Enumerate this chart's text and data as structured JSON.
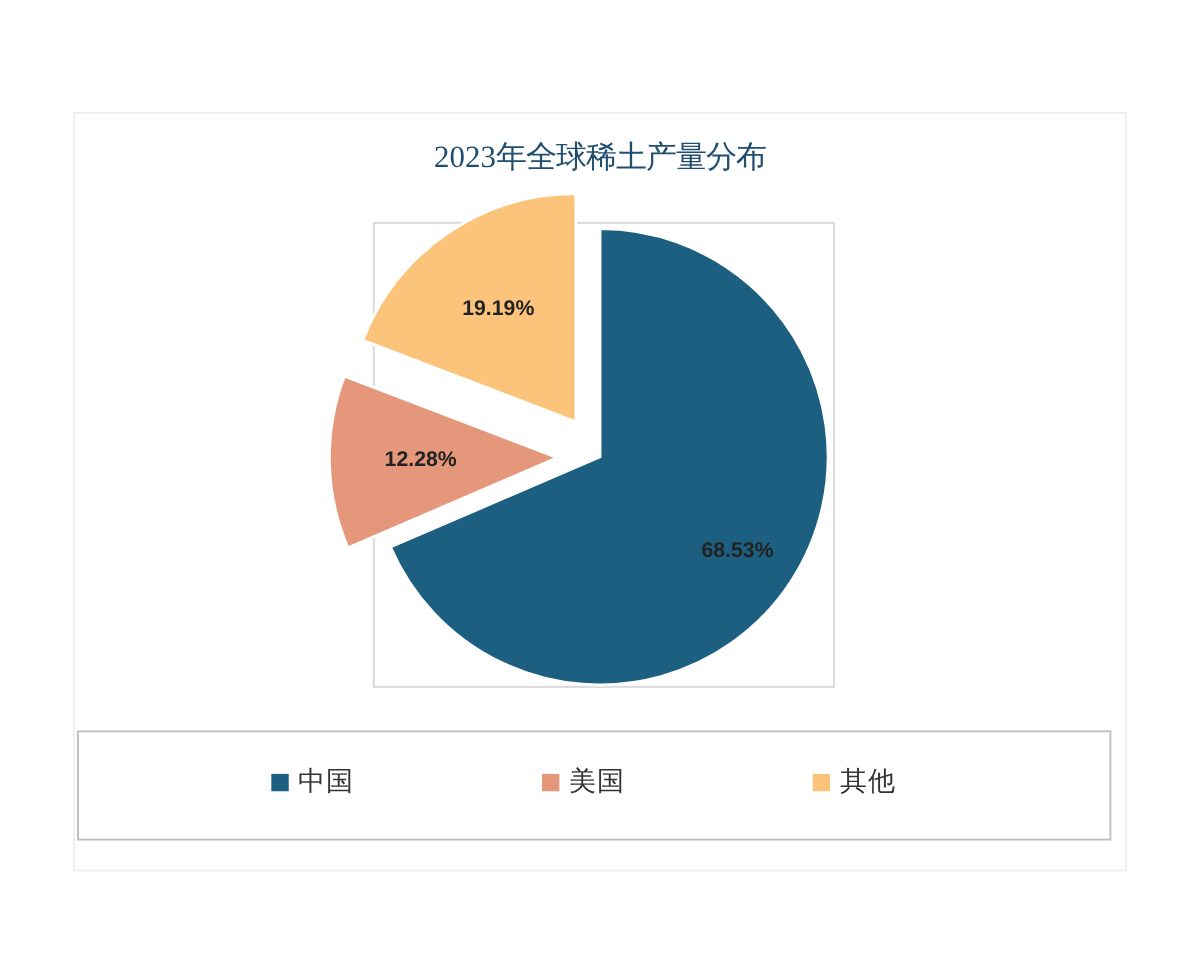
{
  "chart_data": {
    "type": "pie",
    "title": "2023年全球稀土产量分布",
    "categories": [
      "中国",
      "美国",
      "其他"
    ],
    "values": [
      68.53,
      12.28,
      19.19
    ],
    "colors": [
      "#1d5f80",
      "#e4977a",
      "#fbc47a"
    ],
    "value_labels": [
      "68.53%",
      "12.28%",
      "19.19%"
    ],
    "legend": "bottom"
  }
}
